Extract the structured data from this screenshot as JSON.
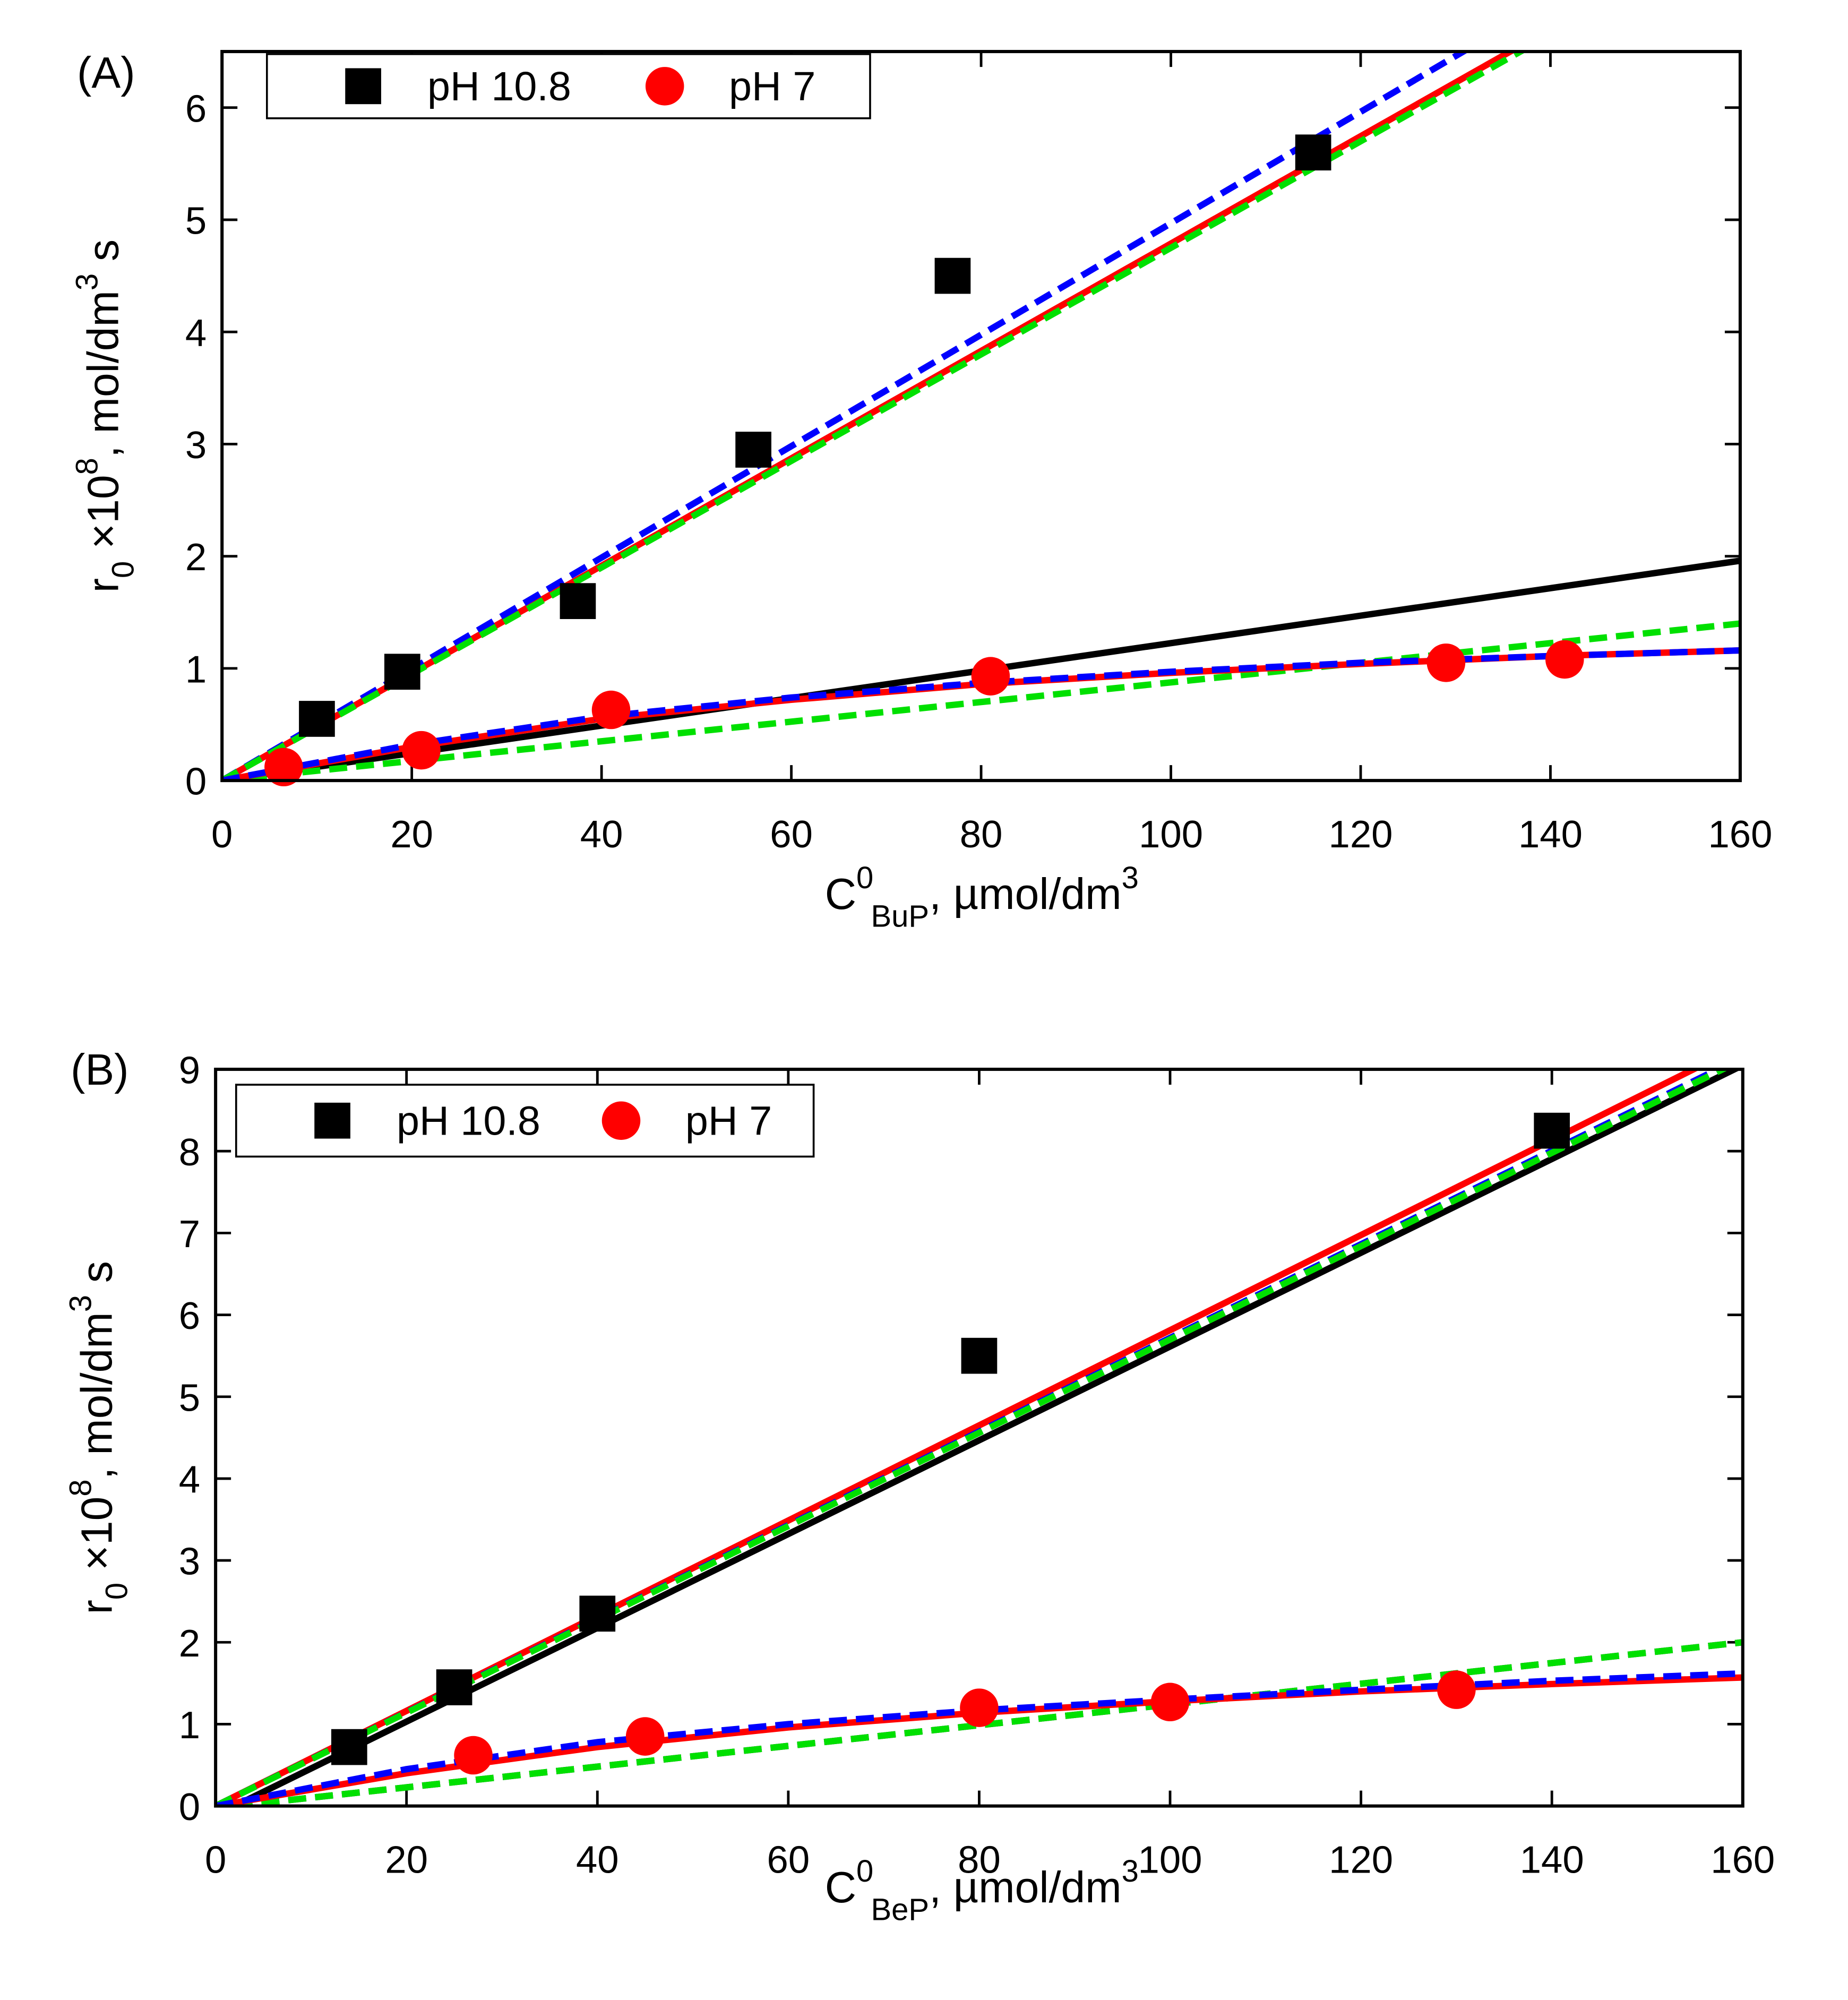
{
  "chart_data": [
    {
      "type": "scatter",
      "panel_label": "(A)",
      "x_label": [
        "C",
        "0",
        "BuP",
        ", µmol/dm",
        "3"
      ],
      "y_label": [
        "r",
        "0",
        " ×10",
        "8",
        ", mol/dm",
        "3",
        " s"
      ],
      "xlim": [
        0,
        160
      ],
      "xticks": [
        0,
        20,
        40,
        60,
        80,
        100,
        120,
        140,
        160
      ],
      "ylim": [
        0,
        6.5
      ],
      "yticks": [
        0,
        1,
        2,
        3,
        4,
        5,
        6
      ],
      "legend": "upper left",
      "series": [
        {
          "name": "pH 10.8",
          "color": "#000000",
          "marker": "square",
          "x": [
            10,
            19,
            37.5,
            56,
            77,
            115
          ],
          "values": [
            0.55,
            0.97,
            1.6,
            2.95,
            4.5,
            5.6
          ]
        },
        {
          "name": "pH 7",
          "color": "#ff0000",
          "marker": "circle",
          "x": [
            6.5,
            21,
            41,
            81,
            129,
            141.5
          ],
          "values": [
            0.12,
            0.27,
            0.63,
            0.93,
            1.05,
            1.08
          ]
        }
      ],
      "fits": [
        {
          "color": "#000000",
          "dash": true,
          "x": [
            0,
            160
          ],
          "values": [
            0,
            7.62
          ]
        },
        {
          "color": "#ff0000",
          "dash": false,
          "x": [
            0,
            160
          ],
          "values": [
            0,
            7.66
          ]
        },
        {
          "color": "#0000ff",
          "dash": true,
          "x": [
            0,
            160
          ],
          "values": [
            0,
            7.95
          ]
        },
        {
          "color": "#00e000",
          "dash": true,
          "x": [
            0,
            160
          ],
          "values": [
            0,
            7.6
          ]
        },
        {
          "color": "#000000",
          "dash": false,
          "x": [
            0,
            160
          ],
          "values": [
            0,
            1.96
          ]
        },
        {
          "color": "#00e000",
          "dash": true,
          "x": [
            0,
            160
          ],
          "values": [
            0,
            1.4
          ]
        },
        {
          "color": "#ff0000",
          "dash": false,
          "x": [
            0,
            20,
            40,
            60,
            80,
            100,
            120,
            140,
            160
          ],
          "values": [
            0,
            0.3,
            0.55,
            0.72,
            0.86,
            0.96,
            1.04,
            1.11,
            1.16
          ]
        },
        {
          "color": "#0000ff",
          "dash": true,
          "x": [
            0,
            20,
            40,
            60,
            80,
            100,
            120,
            140,
            160
          ],
          "values": [
            0,
            0.32,
            0.57,
            0.74,
            0.87,
            0.97,
            1.05,
            1.11,
            1.16
          ]
        }
      ]
    },
    {
      "type": "scatter",
      "panel_label": "(B)",
      "x_label": [
        "C",
        "0",
        "BeP",
        ", µmol/dm",
        "3"
      ],
      "y_label": [
        "r",
        "0",
        " ×10",
        "8",
        ", mol/dm",
        "3",
        " s"
      ],
      "xlim": [
        0,
        160
      ],
      "xticks": [
        0,
        20,
        40,
        60,
        80,
        100,
        120,
        140,
        160
      ],
      "ylim": [
        0,
        9
      ],
      "yticks": [
        0,
        1,
        2,
        3,
        4,
        5,
        6,
        7,
        8,
        9
      ],
      "legend": "upper left",
      "series": [
        {
          "name": "pH 10.8",
          "color": "#000000",
          "marker": "square",
          "x": [
            14,
            25,
            40,
            80,
            140
          ],
          "values": [
            0.72,
            1.45,
            2.35,
            5.5,
            8.25
          ]
        },
        {
          "name": "pH 7",
          "color": "#ff0000",
          "marker": "circle",
          "x": [
            27,
            45,
            80,
            100,
            130
          ],
          "values": [
            0.62,
            0.85,
            1.2,
            1.27,
            1.42
          ]
        }
      ],
      "fits": [
        {
          "color": "#000000",
          "dash": false,
          "x": [
            2,
            160
          ],
          "values": [
            0,
            9.05
          ]
        },
        {
          "color": "#ff0000",
          "dash": false,
          "x": [
            0,
            160
          ],
          "values": [
            0,
            9.3
          ]
        },
        {
          "color": "#0000ff",
          "dash": true,
          "x": [
            0,
            160
          ],
          "values": [
            0,
            9.15
          ]
        },
        {
          "color": "#00e000",
          "dash": true,
          "x": [
            0,
            160
          ],
          "values": [
            0,
            9.12
          ]
        },
        {
          "color": "#000000",
          "dash": true,
          "x": [
            2,
            160
          ],
          "values": [
            0,
            2.0
          ]
        },
        {
          "color": "#00e000",
          "dash": true,
          "x": [
            2,
            160
          ],
          "values": [
            0,
            2.0
          ]
        },
        {
          "color": "#ff0000",
          "dash": false,
          "x": [
            0,
            20,
            40,
            60,
            80,
            100,
            120,
            140,
            160
          ],
          "values": [
            0,
            0.4,
            0.72,
            0.96,
            1.14,
            1.28,
            1.4,
            1.49,
            1.57
          ]
        },
        {
          "color": "#0000ff",
          "dash": true,
          "x": [
            0,
            20,
            40,
            60,
            80,
            100,
            120,
            140,
            160
          ],
          "values": [
            0,
            0.45,
            0.78,
            1.0,
            1.17,
            1.3,
            1.42,
            1.53,
            1.62
          ]
        }
      ]
    }
  ]
}
